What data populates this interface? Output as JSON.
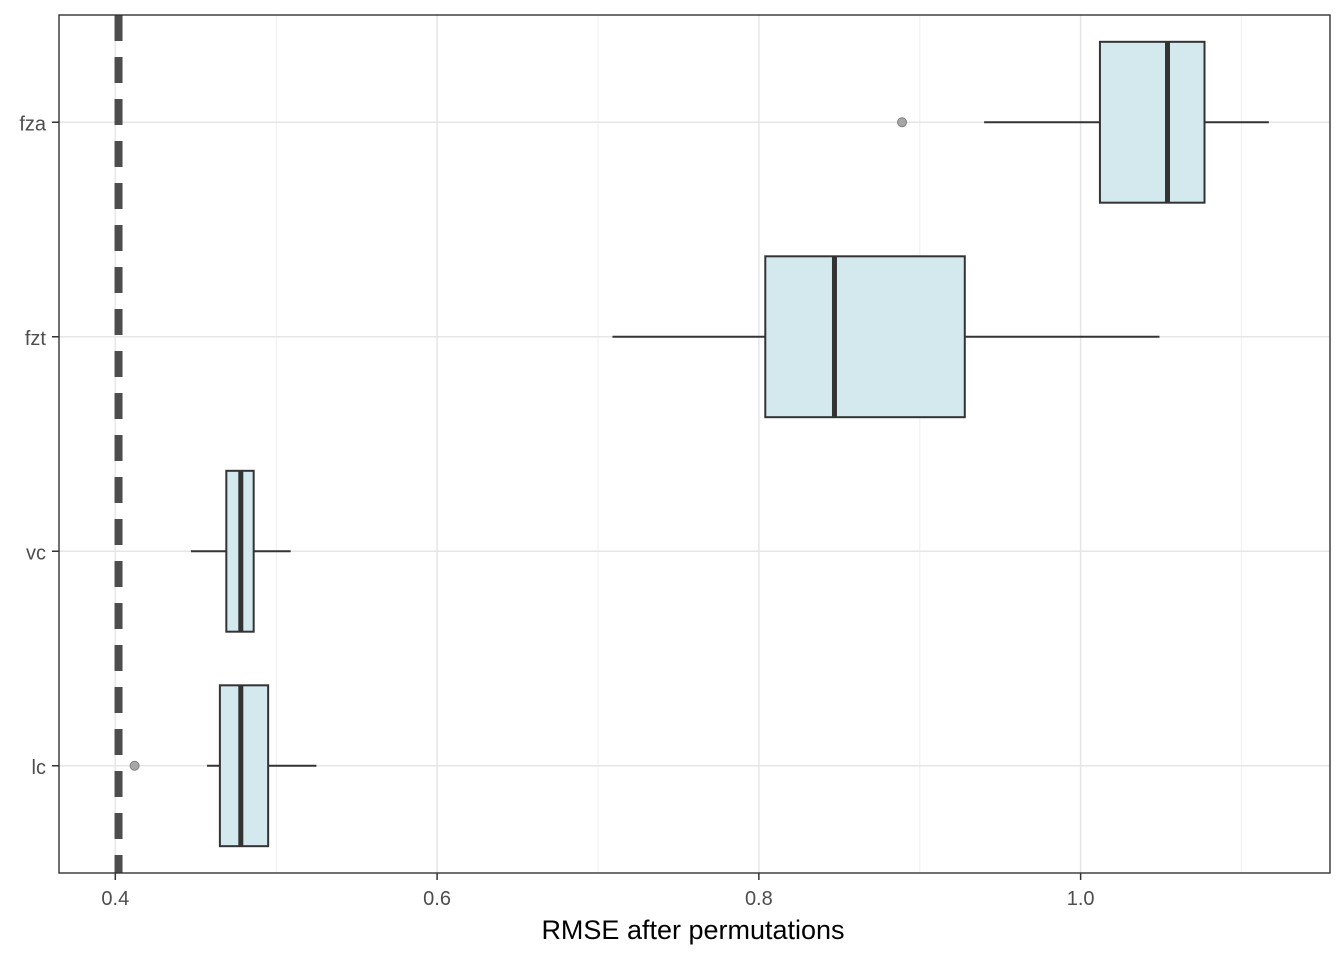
{
  "chart_data": {
    "type": "boxplot",
    "orientation": "horizontal",
    "title": "",
    "xlabel": "RMSE after permutations",
    "ylabel": "",
    "xlim": [
      0.365,
      1.155
    ],
    "xticks": [
      0.4,
      0.6,
      0.8,
      1.0
    ],
    "xtick_labels": [
      "0.4",
      "0.6",
      "0.8",
      "1.0"
    ],
    "minor_xticks": [
      0.5,
      0.7,
      0.9,
      1.1
    ],
    "categories": [
      "lc",
      "vc",
      "fzt",
      "fza"
    ],
    "boxes": [
      {
        "category": "lc",
        "whisker_low": 0.457,
        "q1": 0.465,
        "median": 0.478,
        "q3": 0.495,
        "whisker_high": 0.525,
        "outliers": [
          0.412
        ]
      },
      {
        "category": "vc",
        "whisker_low": 0.447,
        "q1": 0.469,
        "median": 0.478,
        "q3": 0.486,
        "whisker_high": 0.509,
        "outliers": []
      },
      {
        "category": "fzt",
        "whisker_low": 0.709,
        "q1": 0.804,
        "median": 0.847,
        "q3": 0.928,
        "whisker_high": 1.049,
        "outliers": []
      },
      {
        "category": "fza",
        "whisker_low": 0.94,
        "q1": 1.012,
        "median": 1.054,
        "q3": 1.077,
        "whisker_high": 1.117,
        "outliers": [
          0.889
        ]
      }
    ],
    "reference_line": {
      "x": 0.402,
      "style": "dashed"
    },
    "grid": true,
    "legend": "none",
    "colors": {
      "box_fill": "#d3e9ee",
      "box_stroke": "#333333",
      "reference_line": "#4d4d4d",
      "outlier_fill": "#a6a6a6",
      "grid_major": "#e6e6e6",
      "grid_minor": "#f2f2f2",
      "panel_border": "#333333"
    }
  }
}
